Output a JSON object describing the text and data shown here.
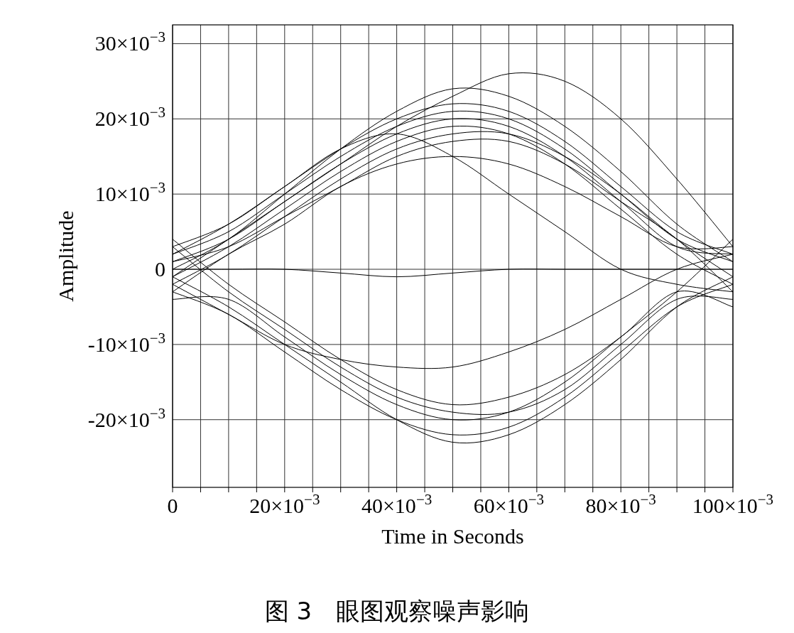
{
  "chart_data": {
    "type": "line",
    "xlabel": "Time in Seconds",
    "ylabel": "Amplitude",
    "annotations": [
      "图 3　眼图观察噪声影响"
    ],
    "grid": true,
    "xlim": [
      0,
      0.1
    ],
    "ylim": [
      -0.029,
      0.0325
    ],
    "xticks": [
      0,
      {
        "value": 0.005,
        "label": null
      },
      {
        "value": 0.01,
        "label": null
      },
      {
        "value": 0.015,
        "label": null
      },
      {
        "value": 0.02,
        "label": "20×10$^{−3}$"
      },
      {
        "value": 0.025,
        "label": null
      },
      {
        "value": 0.03,
        "label": null
      },
      {
        "value": 0.035,
        "label": null
      },
      {
        "value": 0.04,
        "label": "40×10$^{−3}$"
      },
      {
        "value": 0.045,
        "label": null
      },
      {
        "value": 0.05,
        "label": null
      },
      {
        "value": 0.055,
        "label": null
      },
      {
        "value": 0.06,
        "label": "60×10$^{−3}$"
      },
      {
        "value": 0.065,
        "label": null
      },
      {
        "value": 0.07,
        "label": null
      },
      {
        "value": 0.075,
        "label": null
      },
      {
        "value": 0.08,
        "label": "80×10$^{−3}$"
      },
      {
        "value": 0.085,
        "label": null
      },
      {
        "value": 0.09,
        "label": null
      },
      {
        "value": 0.095,
        "label": null
      },
      {
        "value": 0.1,
        "label": "100×10$^{−3}$"
      }
    ],
    "yticks": [
      {
        "value": -0.02,
        "label": "-20×10$^{−3}$"
      },
      {
        "value": -0.01,
        "label": "-10×10$^{−3}$"
      },
      0,
      {
        "value": 0.01,
        "label": "10×10$^{−3}$"
      },
      {
        "value": 0.02,
        "label": "20×10$^{−3}$"
      },
      {
        "value": 0.03,
        "label": "30×10$^{−3}$"
      }
    ],
    "x": [
      0,
      0.01,
      0.02,
      0.03,
      0.04,
      0.05,
      0.06,
      0.07,
      0.08,
      0.09,
      0.1
    ],
    "series": [
      {
        "color": "#000000",
        "values": [
          -0.001,
          0.004,
          0.009,
          0.014,
          0.018,
          0.02,
          0.019,
          0.015,
          0.009,
          0.003,
          0.002
        ]
      },
      {
        "color": "#000000",
        "values": [
          0.002,
          0.005,
          0.01,
          0.015,
          0.019,
          0.021,
          0.02,
          0.016,
          0.01,
          0.004,
          0.001
        ]
      },
      {
        "color": "#000000",
        "values": [
          -0.002,
          0.002,
          0.007,
          0.012,
          0.016,
          0.018,
          0.018,
          0.015,
          0.01,
          0.004,
          -0.001
        ]
      },
      {
        "color": "#000000",
        "values": [
          0.003,
          0.006,
          0.011,
          0.016,
          0.02,
          0.022,
          0.021,
          0.017,
          0.011,
          0.005,
          0.002
        ]
      },
      {
        "color": "#000000",
        "values": [
          0.001,
          0.003,
          0.007,
          0.011,
          0.015,
          0.017,
          0.017,
          0.014,
          0.009,
          0.004,
          -0.003
        ]
      },
      {
        "color": "#000000",
        "values": [
          -0.001,
          0.003,
          0.008,
          0.013,
          0.017,
          0.019,
          0.018,
          0.014,
          0.008,
          0.002,
          -0.002
        ]
      },
      {
        "color": "#000000",
        "values": [
          0.001,
          0.004,
          0.009,
          0.014,
          0.019,
          0.023,
          0.026,
          0.025,
          0.02,
          0.012,
          0.003
        ]
      },
      {
        "color": "#000000",
        "values": [
          0,
          0.004,
          0.01,
          0.016,
          0.021,
          0.024,
          0.023,
          0.019,
          0.013,
          0.006,
          0.001
        ]
      },
      {
        "color": "#000000",
        "values": [
          -0.003,
          0.002,
          0.006,
          0.011,
          0.014,
          0.015,
          0.014,
          0.011,
          0.007,
          0.003,
          0.003
        ]
      },
      {
        "color": "#000000",
        "values": [
          0.002,
          0.006,
          0.011,
          0.016,
          0.018,
          0.015,
          0.01,
          0.005,
          0,
          -0.002,
          -0.003
        ]
      },
      {
        "color": "#000000",
        "values": [
          -0.004,
          -0.004,
          -0.009,
          -0.014,
          -0.018,
          -0.02,
          -0.019,
          -0.015,
          -0.009,
          -0.003,
          0.004
        ]
      },
      {
        "color": "#000000",
        "values": [
          -0.003,
          -0.006,
          -0.011,
          -0.016,
          -0.02,
          -0.022,
          -0.021,
          -0.017,
          -0.011,
          -0.005,
          -0.002
        ]
      },
      {
        "color": "#000000",
        "values": [
          0.004,
          -0.002,
          -0.007,
          -0.012,
          -0.016,
          -0.018,
          -0.017,
          -0.014,
          -0.009,
          -0.003,
          -0.005
        ]
      },
      {
        "color": "#000000",
        "values": [
          -0.001,
          -0.005,
          -0.01,
          -0.015,
          -0.02,
          -0.023,
          -0.022,
          -0.018,
          -0.012,
          -0.005,
          -0.001
        ]
      },
      {
        "color": "#000000",
        "values": [
          0.003,
          -0.003,
          -0.008,
          -0.013,
          -0.017,
          -0.019,
          -0.019,
          -0.016,
          -0.01,
          -0.004,
          -0.004
        ]
      },
      {
        "color": "#000000",
        "values": [
          -0.002,
          -0.006,
          -0.01,
          -0.012,
          -0.013,
          -0.013,
          -0.011,
          -0.008,
          -0.004,
          0,
          0.002
        ]
      },
      {
        "color": "#000000",
        "values": [
          0,
          0,
          0,
          -0.0005,
          -0.001,
          -0.0005,
          0,
          0,
          0,
          0,
          0
        ]
      }
    ]
  }
}
